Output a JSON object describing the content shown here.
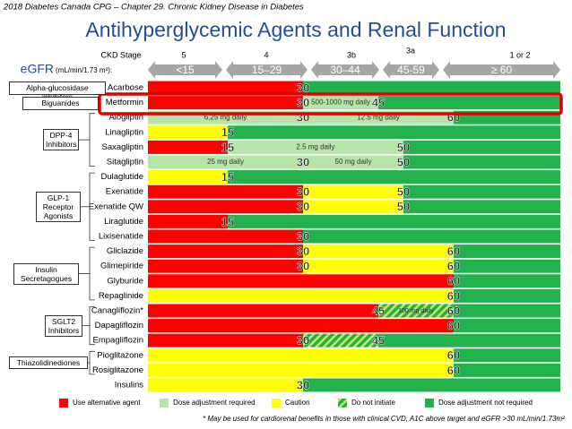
{
  "header": {
    "source": "2018 Diabetes Canada CPG – Chapter 29.  Chronic Kidney Disease in Diabetes",
    "title": "Antihyperglycemic Agents and Renal Function"
  },
  "stages": {
    "label": "CKD Stage",
    "items": [
      "5",
      "4",
      "3b",
      "3a",
      "1 or 2"
    ]
  },
  "egfr": {
    "label": "eGFR",
    "unit": "(mL/min/1.73 m²):",
    "ranges": [
      "<15",
      "15–29",
      "30–44",
      "45-59",
      "≥ 60"
    ]
  },
  "groups": [
    {
      "label": "Alpha-glucosidase inhibitors",
      "drugs": [
        {
          "name": "Acarbose",
          "cutoffs": [
            30
          ],
          "segments": [
            {
              "color": "#ff0000"
            },
            {
              "color": "#22b14c"
            }
          ]
        }
      ]
    },
    {
      "label": "Biguanides",
      "drugs": [
        {
          "name": "Metformin",
          "cutoffs": [
            30,
            45
          ],
          "segments": [
            {
              "color": "#ff0000"
            },
            {
              "color": "#b5e6a8",
              "note": "500-1000 mg daily"
            },
            {
              "color": "#22b14c"
            }
          ]
        }
      ]
    },
    {
      "label": "DPP-4 Inhibitors",
      "drugs": [
        {
          "name": "Alogliptin",
          "cutoffs": [
            30,
            60
          ],
          "segments": [
            {
              "color": "#b5e6a8",
              "note": "6.25 mg daily"
            },
            {
              "color": "#b5e6a8",
              "note": "12.5 mg daily"
            },
            {
              "color": "#22b14c"
            }
          ]
        },
        {
          "name": "Linagliptin",
          "cutoffs": [
            15
          ],
          "segments": [
            {
              "color": "#ffff00"
            },
            {
              "color": "#22b14c"
            }
          ]
        },
        {
          "name": "Saxagliptin",
          "cutoffs": [
            15,
            50
          ],
          "segments": [
            {
              "color": "#ff0000"
            },
            {
              "color": "#b5e6a8",
              "note": "2.5 mg daily"
            },
            {
              "color": "#22b14c"
            }
          ]
        },
        {
          "name": "Sitagliptin",
          "cutoffs": [
            30,
            50
          ],
          "segments": [
            {
              "color": "#b5e6a8",
              "note": "25 mg daily"
            },
            {
              "color": "#b5e6a8",
              "note": "50 mg daily"
            },
            {
              "color": "#22b14c"
            }
          ]
        }
      ]
    },
    {
      "label": "GLP-1 Receptor Agonists",
      "drugs": [
        {
          "name": "Dulaglutide",
          "cutoffs": [
            15
          ],
          "segments": [
            {
              "color": "#ffff00"
            },
            {
              "color": "#22b14c"
            }
          ]
        },
        {
          "name": "Exenatide",
          "cutoffs": [
            30,
            50
          ],
          "segments": [
            {
              "color": "#ff0000"
            },
            {
              "color": "#ffff00"
            },
            {
              "color": "#22b14c"
            }
          ]
        },
        {
          "name": "Exenatide QW",
          "cutoffs": [
            30,
            50
          ],
          "segments": [
            {
              "color": "#ff0000"
            },
            {
              "color": "#ffff00"
            },
            {
              "color": "#22b14c"
            }
          ]
        },
        {
          "name": "Liraglutide",
          "cutoffs": [
            15
          ],
          "segments": [
            {
              "color": "#ff0000"
            },
            {
              "color": "#22b14c"
            }
          ]
        },
        {
          "name": "Lixisenatide",
          "cutoffs": [
            30
          ],
          "segments": [
            {
              "color": "#ff0000"
            },
            {
              "color": "#22b14c"
            }
          ]
        }
      ]
    },
    {
      "label": "Insulin Secretagogues",
      "drugs": [
        {
          "name": "Gliclazide",
          "cutoffs": [
            30,
            60
          ],
          "segments": [
            {
              "color": "#ff0000"
            },
            {
              "color": "#ffff00"
            },
            {
              "color": "#22b14c"
            }
          ]
        },
        {
          "name": "Glimepiride",
          "cutoffs": [
            30,
            60
          ],
          "segments": [
            {
              "color": "#ff0000"
            },
            {
              "color": "#ffff00"
            },
            {
              "color": "#22b14c"
            }
          ]
        },
        {
          "name": "Glyburide",
          "cutoffs": [
            60
          ],
          "segments": [
            {
              "color": "#ff0000"
            },
            {
              "color": "#22b14c"
            }
          ]
        },
        {
          "name": "Repaglinide",
          "cutoffs": [
            60
          ],
          "segments": [
            {
              "color": "#ffff00"
            },
            {
              "color": "#22b14c"
            }
          ]
        }
      ]
    },
    {
      "label": "SGLT2 Inhibitors",
      "drugs": [
        {
          "name": "Canagliflozin*",
          "cutoffs": [
            45,
            60
          ],
          "segments": [
            {
              "color": "#ff0000"
            },
            {
              "color": "#22b14c",
              "hatched": true,
              "note": "100 mg daily"
            },
            {
              "color": "#22b14c"
            }
          ]
        },
        {
          "name": "Dapagliflozin",
          "cutoffs": [
            60
          ],
          "segments": [
            {
              "color": "#ff0000"
            },
            {
              "color": "#22b14c"
            }
          ]
        },
        {
          "name": "Empagliflozin",
          "cutoffs": [
            30,
            45
          ],
          "segments": [
            {
              "color": "#ff0000"
            },
            {
              "color": "#22b14c",
              "hatched": true
            },
            {
              "color": "#22b14c"
            }
          ]
        }
      ]
    },
    {
      "label": "Thiazolidinediones",
      "drugs": [
        {
          "name": "Pioglitazone",
          "cutoffs": [
            60
          ],
          "segments": [
            {
              "color": "#ffff00"
            },
            {
              "color": "#22b14c"
            }
          ]
        },
        {
          "name": "Rosiglitazone",
          "cutoffs": [
            60
          ],
          "segments": [
            {
              "color": "#ffff00"
            },
            {
              "color": "#22b14c"
            }
          ]
        }
      ]
    },
    {
      "drugs": [
        {
          "name": "Insulins",
          "cutoffs": [
            30
          ],
          "segments": [
            {
              "color": "#ffff00"
            },
            {
              "color": "#22b14c"
            }
          ]
        }
      ]
    }
  ],
  "legend": [
    {
      "color": "#ff0000",
      "label": "Use alternative agent"
    },
    {
      "color": "#b5e6a8",
      "label": "Dose adjustment required"
    },
    {
      "color": "#ffff00",
      "label": "Caution"
    },
    {
      "color": "#22b14c",
      "hatched": true,
      "label": "Do not initiate"
    },
    {
      "color": "#22b14c",
      "label": "Dose adjustment not required"
    }
  ],
  "footnote": "* May be used for cardiorenal benefits in those with clinical CVD, A1C above target and eGFR >30 mL/min/1.73m²"
}
